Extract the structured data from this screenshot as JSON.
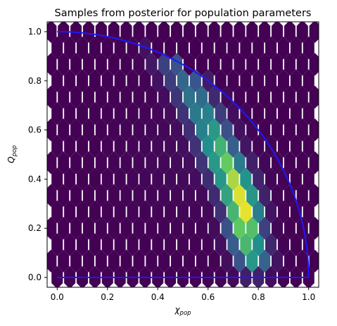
{
  "chart_data": {
    "type": "hexbin",
    "title": "Samples from posterior for population parameters",
    "xlabel": {
      "symbol": "χ",
      "subscript": "pop"
    },
    "ylabel": {
      "symbol": "Q",
      "subscript": "pop"
    },
    "xlim": [
      -0.04,
      1.04
    ],
    "ylim": [
      -0.04,
      1.04
    ],
    "xticks": [
      0.0,
      0.2,
      0.4,
      0.6,
      0.8,
      1.0
    ],
    "yticks": [
      0.0,
      0.2,
      0.4,
      0.6,
      0.8,
      1.0
    ],
    "xtick_labels": [
      "0.0",
      "0.2",
      "0.4",
      "0.6",
      "0.8",
      "1.0"
    ],
    "ytick_labels": [
      "0.0",
      "0.2",
      "0.4",
      "0.6",
      "0.8",
      "1.0"
    ],
    "hex_grid": {
      "x_centers_from": 0.0,
      "x_step": 0.05,
      "y_centers_from": 0.0,
      "y_step": 0.0667,
      "offset_rows": true
    },
    "density_ridge": [
      {
        "x": 0.42,
        "q": 0.92,
        "peak": 0.18,
        "width": 0.045
      },
      {
        "x": 0.52,
        "q": 0.78,
        "peak": 0.35,
        "width": 0.045
      },
      {
        "x": 0.6,
        "q": 0.62,
        "peak": 0.5,
        "width": 0.045
      },
      {
        "x": 0.65,
        "q": 0.5,
        "peak": 0.68,
        "width": 0.045
      },
      {
        "x": 0.7,
        "q": 0.4,
        "peak": 0.85,
        "width": 0.045
      },
      {
        "x": 0.74,
        "q": 0.28,
        "peak": 1.0,
        "width": 0.045
      },
      {
        "x": 0.75,
        "q": 0.18,
        "peak": 0.8,
        "width": 0.045
      },
      {
        "x": 0.78,
        "q": 0.08,
        "peak": 0.55,
        "width": 0.045
      }
    ],
    "boundary_curve": {
      "type": "quarter-circle",
      "center": [
        0,
        0
      ],
      "radius": 1.0,
      "closed_along_x_axis": true,
      "color": "#1a1aff"
    },
    "colormap": "viridis",
    "grid": false,
    "legend": "none"
  }
}
